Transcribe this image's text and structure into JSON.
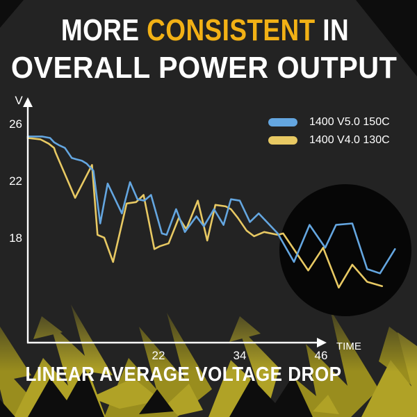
{
  "title": {
    "prefix": "MORE ",
    "highlight": "CONSISTENT",
    "suffix": " IN",
    "line2": "OVERALL POWER OUTPUT"
  },
  "caption": "LINEAR AVERAGE VOLTAGE DROP",
  "colors": {
    "background": "#232323",
    "text": "#ffffff",
    "highlight": "#f2b115",
    "blue": "#64a6e0",
    "yellow": "#e8c963",
    "axis": "#ffffff",
    "circle": "#060606",
    "bolt_gold": "#b0a226",
    "bolt_gold2": "#998d1e",
    "bolt_dark": "#0d0d0d"
  },
  "chart_data": {
    "type": "line",
    "title": "",
    "xlabel": "TIME",
    "ylabel": "V",
    "x_ticks": [
      22,
      34,
      46
    ],
    "y_ticks": [
      26,
      22,
      18
    ],
    "xlim": [
      2,
      58
    ],
    "ylim": [
      11,
      27
    ],
    "grid": false,
    "legend_position": "top-right",
    "legend": [
      {
        "label": "1400 V5.0 150C",
        "series": "v5"
      },
      {
        "label": "1400 V4.0 130C",
        "series": "v4"
      }
    ],
    "series": [
      {
        "id": "v5",
        "name": "1400 V5.0 150C",
        "color_key": "blue",
        "points": [
          [
            2.7,
            25.1
          ],
          [
            4.8,
            25.1
          ],
          [
            6.0,
            25.0
          ],
          [
            6.6,
            24.7
          ],
          [
            7.3,
            24.5
          ],
          [
            8.2,
            24.3
          ],
          [
            9.2,
            23.6
          ],
          [
            9.9,
            23.5
          ],
          [
            10.7,
            23.4
          ],
          [
            11.4,
            23.2
          ],
          [
            12.4,
            22.7
          ],
          [
            13.4,
            19.0
          ],
          [
            14.5,
            21.8
          ],
          [
            16.6,
            19.7
          ],
          [
            17.8,
            21.9
          ],
          [
            18.9,
            20.7
          ],
          [
            19.9,
            20.6
          ],
          [
            20.9,
            21.0
          ],
          [
            22.5,
            18.3
          ],
          [
            23.2,
            18.2
          ],
          [
            24.6,
            20.0
          ],
          [
            25.9,
            18.4
          ],
          [
            27.6,
            19.5
          ],
          [
            28.7,
            18.8
          ],
          [
            30.2,
            20.0
          ],
          [
            31.6,
            18.9
          ],
          [
            32.7,
            20.7
          ],
          [
            34.0,
            20.6
          ],
          [
            35.5,
            19.1
          ],
          [
            36.8,
            19.7
          ],
          [
            39.6,
            18.3
          ],
          [
            42.0,
            16.3
          ],
          [
            44.3,
            18.9
          ],
          [
            46.6,
            17.3
          ],
          [
            48.2,
            18.9
          ],
          [
            50.6,
            19.0
          ],
          [
            52.8,
            15.8
          ],
          [
            54.7,
            15.5
          ],
          [
            56.9,
            17.2
          ]
        ]
      },
      {
        "id": "v4",
        "name": "1400 V4.0 130C",
        "color_key": "yellow",
        "points": [
          [
            2.7,
            25.0
          ],
          [
            4.6,
            24.9
          ],
          [
            5.8,
            24.6
          ],
          [
            6.6,
            24.3
          ],
          [
            6.8,
            24.0
          ],
          [
            9.7,
            20.8
          ],
          [
            12.2,
            23.1
          ],
          [
            13.0,
            18.2
          ],
          [
            14.0,
            18.0
          ],
          [
            15.3,
            16.3
          ],
          [
            17.3,
            20.4
          ],
          [
            18.7,
            20.5
          ],
          [
            19.8,
            21.0
          ],
          [
            21.4,
            17.2
          ],
          [
            22.2,
            17.4
          ],
          [
            23.5,
            17.6
          ],
          [
            25.0,
            19.4
          ],
          [
            26.1,
            18.6
          ],
          [
            27.8,
            20.6
          ],
          [
            29.2,
            17.8
          ],
          [
            30.4,
            20.3
          ],
          [
            31.9,
            20.2
          ],
          [
            32.7,
            20.0
          ],
          [
            33.7,
            19.4
          ],
          [
            35.0,
            18.5
          ],
          [
            36.1,
            18.1
          ],
          [
            37.6,
            18.4
          ],
          [
            39.6,
            18.2
          ],
          [
            40.4,
            18.3
          ],
          [
            44.1,
            15.7
          ],
          [
            46.3,
            17.3
          ],
          [
            48.6,
            14.5
          ],
          [
            50.6,
            16.1
          ],
          [
            52.8,
            14.9
          ],
          [
            55.0,
            14.6
          ]
        ]
      }
    ],
    "annotations": [
      {
        "type": "highlight-circle",
        "t": 49.6,
        "v": 17.1,
        "radius_px": 95
      }
    ]
  }
}
